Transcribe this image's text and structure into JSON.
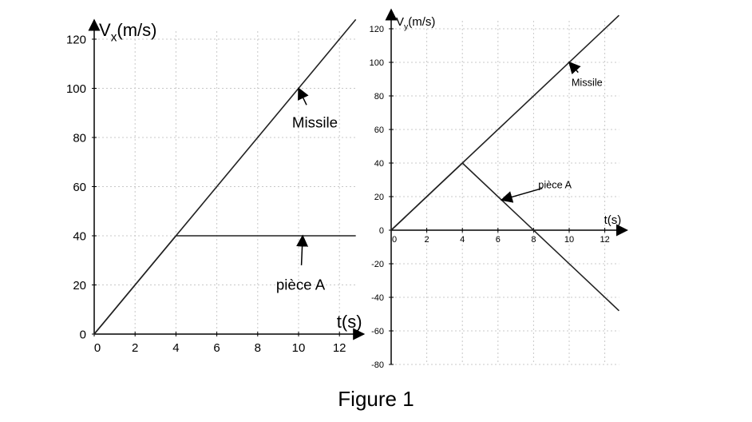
{
  "figure_caption": "Figure 1",
  "chart_data": [
    {
      "type": "line",
      "xlabel": "t(s)",
      "ylabel_main": "V",
      "ylabel_sub": "x",
      "ylabel_unit": "(m/s)",
      "xlim": [
        0,
        12.8
      ],
      "ylim": [
        0,
        120
      ],
      "xticks": [
        0,
        2,
        4,
        6,
        8,
        10,
        12
      ],
      "yticks": [
        0,
        20,
        40,
        60,
        80,
        100,
        120
      ],
      "grid": true,
      "series": [
        {
          "name": "Missile",
          "x": [
            0,
            12.8
          ],
          "y": [
            0,
            128
          ]
        },
        {
          "name": "pièce A",
          "x": [
            0,
            4,
            12.8
          ],
          "y": [
            0,
            40,
            40
          ]
        }
      ],
      "annotations": [
        {
          "text": "Missile",
          "label_at": [
            10.8,
            84
          ],
          "arrow_to": [
            10,
            100
          ]
        },
        {
          "text": "pièce A",
          "label_at": [
            10.1,
            18
          ],
          "arrow_to": [
            10.2,
            40
          ]
        }
      ]
    },
    {
      "type": "line",
      "xlabel": "t(s)",
      "ylabel_main": "V",
      "ylabel_sub": "y",
      "ylabel_unit": "(m/s)",
      "xlim": [
        0,
        12.8
      ],
      "ylim": [
        -80,
        120
      ],
      "xticks": [
        0,
        2,
        4,
        6,
        8,
        10,
        12
      ],
      "yticks": [
        -80,
        -60,
        -40,
        -20,
        0,
        20,
        40,
        60,
        80,
        100,
        120
      ],
      "grid": true,
      "series": [
        {
          "name": "Missile",
          "x": [
            0,
            12.8
          ],
          "y": [
            0,
            128
          ]
        },
        {
          "name": "pièce A",
          "x": [
            0,
            4,
            12.8
          ],
          "y": [
            0,
            40,
            -48
          ]
        }
      ],
      "annotations": [
        {
          "text": "Missile",
          "label_at": [
            11,
            86
          ],
          "arrow_to": [
            10,
            100
          ]
        },
        {
          "text": "pièce A",
          "label_at": [
            9.2,
            25
          ],
          "arrow_to": [
            6.2,
            18
          ]
        }
      ]
    }
  ]
}
